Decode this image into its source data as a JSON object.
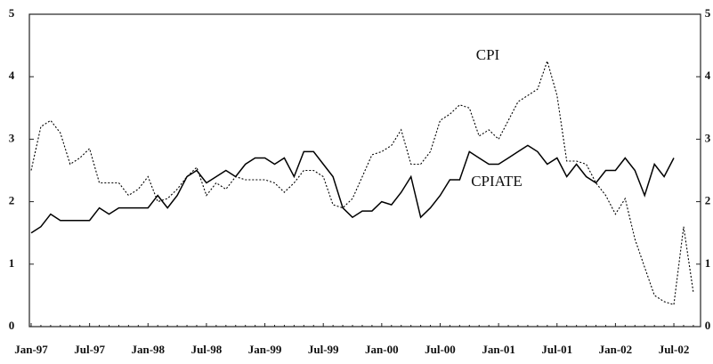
{
  "chart_data": {
    "type": "line",
    "annotations": [
      "CPI",
      "CPIATE"
    ],
    "categories": [
      "Jan-97",
      null,
      null,
      null,
      null,
      null,
      "Jul-97",
      null,
      null,
      null,
      null,
      null,
      "Jan-98",
      null,
      null,
      null,
      null,
      null,
      "Jul-98",
      null,
      null,
      null,
      null,
      null,
      "Jan-99",
      null,
      null,
      null,
      null,
      null,
      "Jul-99",
      null,
      null,
      null,
      null,
      null,
      "Jan-00",
      null,
      null,
      null,
      null,
      null,
      "Jul-00",
      null,
      null,
      null,
      null,
      null,
      "Jan-01",
      null,
      null,
      null,
      null,
      null,
      "Jul-01",
      null,
      null,
      null,
      null,
      null,
      "Jan-02",
      null,
      null,
      null,
      null,
      null,
      "Jul-02",
      null,
      null
    ],
    "series": [
      {
        "name": "CPI",
        "color": "#000000",
        "dash": true,
        "values": [
          2.5,
          3.2,
          3.3,
          3.1,
          2.6,
          2.7,
          2.85,
          2.3,
          2.3,
          2.3,
          2.1,
          2.2,
          2.4,
          2.0,
          2.05,
          2.2,
          2.4,
          2.55,
          2.1,
          2.3,
          2.2,
          2.4,
          2.35,
          2.35,
          2.35,
          2.3,
          2.15,
          2.3,
          2.5,
          2.5,
          2.4,
          1.95,
          1.9,
          2.05,
          2.4,
          2.75,
          2.8,
          2.9,
          3.15,
          2.6,
          2.6,
          2.8,
          3.3,
          3.4,
          3.55,
          3.5,
          3.05,
          3.15,
          3.0,
          3.3,
          3.6,
          3.7,
          3.8,
          4.25,
          3.7,
          2.65,
          2.65,
          2.6,
          2.3,
          2.1,
          1.8,
          2.05,
          1.4,
          0.95,
          0.5,
          0.4,
          0.35,
          1.6,
          0.55
        ]
      },
      {
        "name": "CPIATE",
        "color": "#000000",
        "dash": false,
        "values": [
          1.5,
          1.6,
          1.8,
          1.7,
          1.7,
          1.7,
          1.7,
          1.9,
          1.8,
          1.9,
          1.9,
          1.9,
          1.9,
          2.1,
          1.9,
          2.1,
          2.4,
          2.5,
          2.3,
          2.4,
          2.5,
          2.4,
          2.6,
          2.7,
          2.7,
          2.6,
          2.7,
          2.4,
          2.8,
          2.8,
          2.6,
          2.4,
          1.9,
          1.75,
          1.85,
          1.85,
          2.0,
          1.95,
          2.15,
          2.4,
          1.75,
          1.9,
          2.1,
          2.35,
          2.35,
          2.8,
          2.7,
          2.6,
          2.6,
          2.7,
          2.8,
          2.9,
          2.8,
          2.6,
          2.7,
          2.4,
          2.6,
          2.4,
          2.3,
          2.5,
          2.5,
          2.7,
          2.5,
          2.1,
          2.6,
          2.4,
          2.7,
          null,
          null
        ]
      }
    ],
    "ylim": [
      0,
      5
    ],
    "yticks": [
      0,
      1,
      2,
      3,
      4,
      5
    ],
    "y2lim": [
      0,
      5
    ],
    "y2ticks": [
      0,
      1,
      2,
      3,
      4,
      5
    ],
    "grid": false
  }
}
